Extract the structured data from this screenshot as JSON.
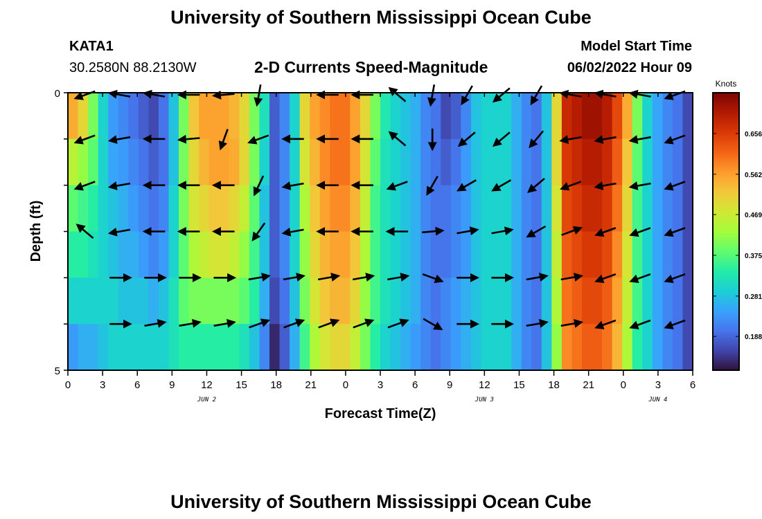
{
  "page": {
    "title": "University of Southern Mississippi Ocean Cube",
    "station": "KATA1",
    "coords": "30.2580N  88.2130W",
    "plot_title": "2-D Currents Speed-Magnitude",
    "model_start_label": "Model Start Time",
    "model_start_value": "06/02/2022 Hour 09",
    "title_repeat": "University of Southern Mississippi Ocean Cube"
  },
  "chart_data": {
    "type": "heatmap",
    "title": "2-D Currents Speed-Magnitude",
    "xlabel": "Forecast Time(Z)",
    "ylabel": "Depth (ft)",
    "colorbar_label": "Knots",
    "ylim": [
      0,
      5
    ],
    "y_ticks": [
      "0",
      "5"
    ],
    "x_range_hours": [
      0,
      54
    ],
    "x_ticks": [
      "0",
      "3",
      "6",
      "9",
      "12",
      "15",
      "18",
      "21",
      "0",
      "3",
      "6",
      "9",
      "12",
      "15",
      "18",
      "21",
      "0",
      "3",
      "6"
    ],
    "date_labels": [
      {
        "text": "JUN 2",
        "hour": 12
      },
      {
        "text": "JUN 3",
        "hour": 36
      },
      {
        "text": "JUN 4",
        "hour": 51
      }
    ],
    "colorbar": {
      "range": [
        0.11,
        0.75
      ],
      "ticks": [
        "0.188",
        "0.281",
        "0.375",
        "0.469",
        "0.562",
        "0.656"
      ],
      "tick_values": [
        0.188,
        0.281,
        0.375,
        0.469,
        0.562,
        0.656
      ],
      "stops": [
        "#30123b",
        "#4145ab",
        "#4675ed",
        "#39a2fc",
        "#1bcfd4",
        "#24eca6",
        "#61fc6c",
        "#a4fc3b",
        "#d1e834",
        "#f3c63a",
        "#fe9b2d",
        "#f36315",
        "#d93806",
        "#b11901",
        "#7a0403"
      ]
    },
    "depth_rows": [
      0,
      1,
      2,
      3,
      4,
      5
    ],
    "speed_knots": [
      [
        0.55,
        0.5,
        0.4,
        0.3,
        0.24,
        0.22,
        0.2,
        0.18,
        0.16,
        0.2,
        0.28,
        0.4,
        0.52,
        0.56,
        0.56,
        0.56,
        0.54,
        0.5,
        0.4,
        0.32,
        0.18,
        0.22,
        0.3,
        0.5,
        0.56,
        0.58,
        0.6,
        0.6,
        0.56,
        0.5,
        0.4,
        0.33,
        0.3,
        0.28,
        0.26,
        0.22,
        0.2,
        0.16,
        0.18,
        0.22,
        0.28,
        0.3,
        0.3,
        0.3,
        0.26,
        0.22,
        0.2,
        0.28,
        0.5,
        0.68,
        0.7,
        0.72,
        0.72,
        0.7,
        0.64,
        0.55,
        0.4,
        0.3,
        0.25,
        0.22,
        0.2,
        0.16
      ],
      [
        0.45,
        0.42,
        0.38,
        0.3,
        0.25,
        0.24,
        0.22,
        0.2,
        0.18,
        0.2,
        0.28,
        0.4,
        0.5,
        0.54,
        0.56,
        0.56,
        0.55,
        0.5,
        0.4,
        0.3,
        0.18,
        0.22,
        0.3,
        0.48,
        0.54,
        0.58,
        0.6,
        0.6,
        0.56,
        0.48,
        0.38,
        0.32,
        0.3,
        0.28,
        0.26,
        0.22,
        0.2,
        0.18,
        0.2,
        0.24,
        0.28,
        0.3,
        0.3,
        0.3,
        0.26,
        0.22,
        0.2,
        0.28,
        0.5,
        0.66,
        0.68,
        0.7,
        0.7,
        0.68,
        0.62,
        0.52,
        0.38,
        0.3,
        0.25,
        0.22,
        0.2,
        0.16
      ],
      [
        0.38,
        0.36,
        0.34,
        0.3,
        0.28,
        0.26,
        0.24,
        0.22,
        0.2,
        0.22,
        0.3,
        0.4,
        0.48,
        0.5,
        0.52,
        0.52,
        0.5,
        0.46,
        0.38,
        0.28,
        0.18,
        0.22,
        0.3,
        0.44,
        0.52,
        0.56,
        0.58,
        0.58,
        0.54,
        0.46,
        0.36,
        0.32,
        0.3,
        0.28,
        0.26,
        0.22,
        0.2,
        0.2,
        0.22,
        0.24,
        0.28,
        0.3,
        0.3,
        0.3,
        0.26,
        0.22,
        0.2,
        0.28,
        0.48,
        0.64,
        0.66,
        0.68,
        0.68,
        0.66,
        0.6,
        0.5,
        0.36,
        0.3,
        0.25,
        0.22,
        0.2,
        0.16
      ],
      [
        0.34,
        0.34,
        0.32,
        0.3,
        0.28,
        0.26,
        0.26,
        0.24,
        0.22,
        0.24,
        0.3,
        0.38,
        0.44,
        0.46,
        0.48,
        0.48,
        0.46,
        0.42,
        0.36,
        0.28,
        0.18,
        0.22,
        0.3,
        0.42,
        0.5,
        0.54,
        0.56,
        0.56,
        0.52,
        0.44,
        0.36,
        0.32,
        0.3,
        0.28,
        0.26,
        0.22,
        0.2,
        0.2,
        0.22,
        0.24,
        0.28,
        0.3,
        0.3,
        0.3,
        0.26,
        0.22,
        0.2,
        0.28,
        0.46,
        0.62,
        0.64,
        0.66,
        0.66,
        0.64,
        0.58,
        0.48,
        0.36,
        0.3,
        0.25,
        0.22,
        0.2,
        0.16
      ],
      [
        0.3,
        0.3,
        0.3,
        0.3,
        0.3,
        0.28,
        0.28,
        0.28,
        0.26,
        0.28,
        0.32,
        0.38,
        0.4,
        0.4,
        0.4,
        0.4,
        0.4,
        0.38,
        0.34,
        0.26,
        0.16,
        0.2,
        0.28,
        0.4,
        0.48,
        0.52,
        0.54,
        0.54,
        0.5,
        0.42,
        0.36,
        0.32,
        0.3,
        0.28,
        0.26,
        0.22,
        0.2,
        0.22,
        0.24,
        0.26,
        0.28,
        0.3,
        0.3,
        0.3,
        0.26,
        0.22,
        0.2,
        0.28,
        0.44,
        0.6,
        0.62,
        0.64,
        0.64,
        0.62,
        0.56,
        0.46,
        0.36,
        0.3,
        0.25,
        0.22,
        0.2,
        0.16
      ],
      [
        0.24,
        0.26,
        0.26,
        0.28,
        0.3,
        0.3,
        0.3,
        0.3,
        0.3,
        0.3,
        0.32,
        0.34,
        0.34,
        0.34,
        0.34,
        0.34,
        0.34,
        0.32,
        0.28,
        0.22,
        0.13,
        0.18,
        0.26,
        0.36,
        0.44,
        0.48,
        0.5,
        0.5,
        0.46,
        0.4,
        0.34,
        0.3,
        0.28,
        0.26,
        0.24,
        0.22,
        0.2,
        0.22,
        0.24,
        0.26,
        0.28,
        0.3,
        0.3,
        0.3,
        0.26,
        0.22,
        0.2,
        0.28,
        0.42,
        0.58,
        0.6,
        0.62,
        0.62,
        0.6,
        0.54,
        0.44,
        0.34,
        0.3,
        0.25,
        0.22,
        0.2,
        0.16
      ]
    ],
    "vector_hours": [
      1.5,
      4.5,
      7.5,
      10.5,
      13.5,
      16.5,
      19.5,
      22.5,
      25.5,
      28.5,
      31.5,
      34.5,
      37.5,
      40.5,
      43.5,
      46.5,
      49.5,
      52.5
    ],
    "vectors_deg": [
      [
        200,
        170,
        170,
        180,
        185,
        260,
        null,
        180,
        180,
        140,
        260,
        240,
        220,
        240,
        170,
        170,
        170,
        200
      ],
      [
        200,
        190,
        180,
        185,
        250,
        200,
        180,
        180,
        180,
        140,
        270,
        220,
        220,
        230,
        190,
        190,
        190,
        200
      ],
      [
        200,
        190,
        180,
        180,
        180,
        245,
        190,
        180,
        180,
        200,
        240,
        210,
        210,
        220,
        200,
        190,
        190,
        200
      ],
      [
        140,
        190,
        180,
        180,
        180,
        235,
        190,
        180,
        180,
        180,
        5,
        10,
        10,
        210,
        20,
        200,
        200,
        200
      ],
      [
        null,
        0,
        0,
        0,
        0,
        10,
        10,
        10,
        10,
        10,
        340,
        0,
        0,
        10,
        10,
        200,
        200,
        200
      ],
      [
        null,
        0,
        10,
        10,
        10,
        20,
        20,
        20,
        20,
        20,
        330,
        0,
        0,
        10,
        10,
        200,
        200,
        200
      ]
    ]
  }
}
